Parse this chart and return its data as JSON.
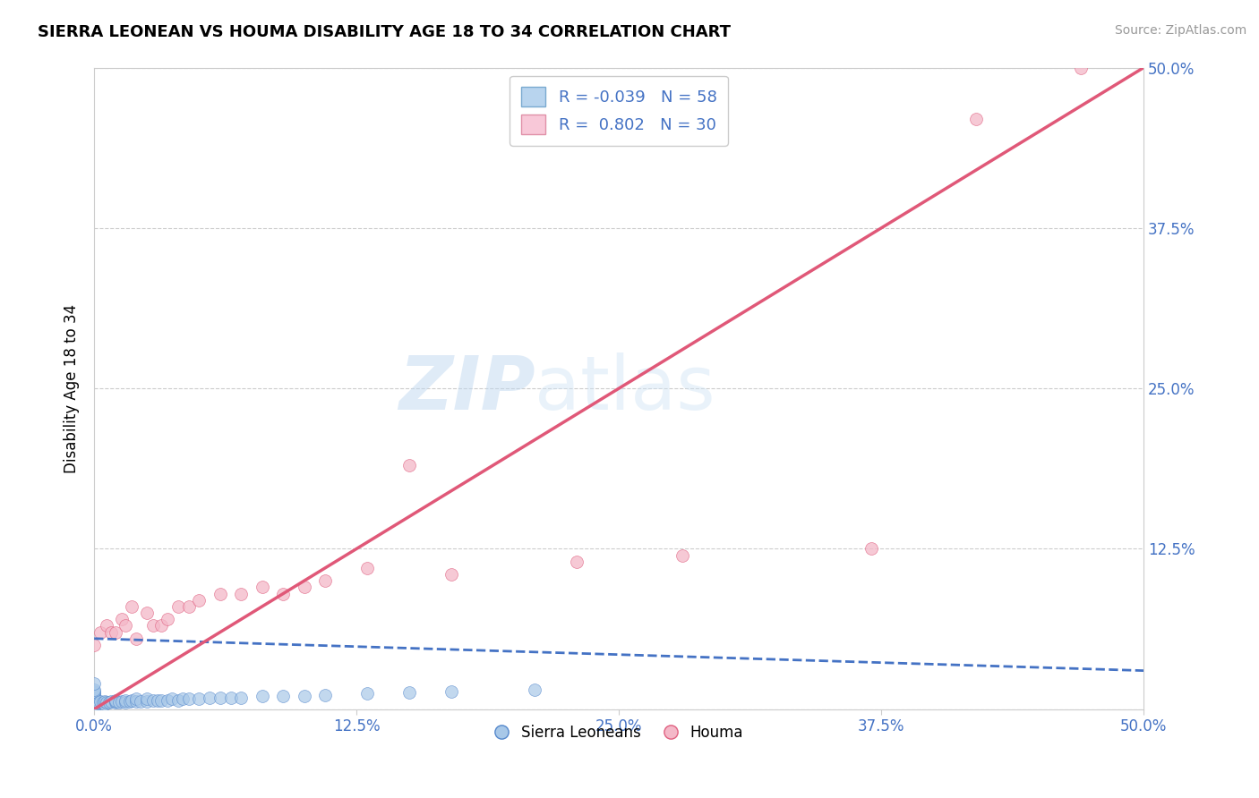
{
  "title": "SIERRA LEONEAN VS HOUMA DISABILITY AGE 18 TO 34 CORRELATION CHART",
  "source_text": "Source: ZipAtlas.com",
  "ylabel": "Disability Age 18 to 34",
  "xlim": [
    0.0,
    0.5
  ],
  "ylim": [
    0.0,
    0.5
  ],
  "xtick_vals": [
    0.0,
    0.125,
    0.25,
    0.375,
    0.5
  ],
  "ytick_vals": [
    0.0,
    0.125,
    0.25,
    0.375,
    0.5
  ],
  "grid_color": "#cccccc",
  "background_color": "#ffffff",
  "legend_R1": "-0.039",
  "legend_N1": "58",
  "legend_R2": "0.802",
  "legend_N2": "30",
  "sierra_color": "#a8c8e8",
  "houma_color": "#f4b8c8",
  "sierra_edge_color": "#5588cc",
  "houma_edge_color": "#e06080",
  "sierra_line_color": "#4472c4",
  "houma_line_color": "#e05878",
  "sierra_scatter_x": [
    0.0,
    0.0,
    0.0,
    0.0,
    0.0,
    0.0,
    0.0,
    0.0,
    0.0,
    0.0,
    0.0,
    0.0,
    0.0,
    0.0,
    0.0,
    0.002,
    0.003,
    0.004,
    0.005,
    0.005,
    0.006,
    0.007,
    0.008,
    0.01,
    0.01,
    0.01,
    0.012,
    0.013,
    0.015,
    0.015,
    0.017,
    0.018,
    0.02,
    0.02,
    0.022,
    0.025,
    0.025,
    0.028,
    0.03,
    0.032,
    0.035,
    0.037,
    0.04,
    0.042,
    0.045,
    0.05,
    0.055,
    0.06,
    0.065,
    0.07,
    0.08,
    0.09,
    0.1,
    0.11,
    0.13,
    0.15,
    0.17,
    0.21
  ],
  "sierra_scatter_y": [
    0.0,
    0.002,
    0.003,
    0.004,
    0.005,
    0.006,
    0.007,
    0.008,
    0.01,
    0.011,
    0.012,
    0.013,
    0.014,
    0.015,
    0.02,
    0.005,
    0.006,
    0.005,
    0.004,
    0.006,
    0.005,
    0.005,
    0.006,
    0.005,
    0.006,
    0.007,
    0.005,
    0.006,
    0.005,
    0.007,
    0.006,
    0.007,
    0.006,
    0.008,
    0.006,
    0.006,
    0.008,
    0.007,
    0.007,
    0.007,
    0.007,
    0.008,
    0.007,
    0.008,
    0.008,
    0.008,
    0.009,
    0.009,
    0.009,
    0.009,
    0.01,
    0.01,
    0.01,
    0.011,
    0.012,
    0.013,
    0.014,
    0.015
  ],
  "houma_scatter_x": [
    0.0,
    0.003,
    0.006,
    0.008,
    0.01,
    0.013,
    0.015,
    0.018,
    0.02,
    0.025,
    0.028,
    0.032,
    0.035,
    0.04,
    0.045,
    0.05,
    0.06,
    0.07,
    0.08,
    0.09,
    0.1,
    0.11,
    0.13,
    0.15,
    0.17,
    0.23,
    0.28,
    0.37,
    0.42,
    0.47
  ],
  "houma_scatter_y": [
    0.05,
    0.06,
    0.065,
    0.06,
    0.06,
    0.07,
    0.065,
    0.08,
    0.055,
    0.075,
    0.065,
    0.065,
    0.07,
    0.08,
    0.08,
    0.085,
    0.09,
    0.09,
    0.095,
    0.09,
    0.095,
    0.1,
    0.11,
    0.19,
    0.105,
    0.115,
    0.12,
    0.125,
    0.46,
    0.5
  ],
  "sierra_trend_x": [
    0.0,
    0.5
  ],
  "sierra_trend_y": [
    0.055,
    0.03
  ],
  "houma_trend_x": [
    0.0,
    0.5
  ],
  "houma_trend_y": [
    0.0,
    0.5
  ]
}
